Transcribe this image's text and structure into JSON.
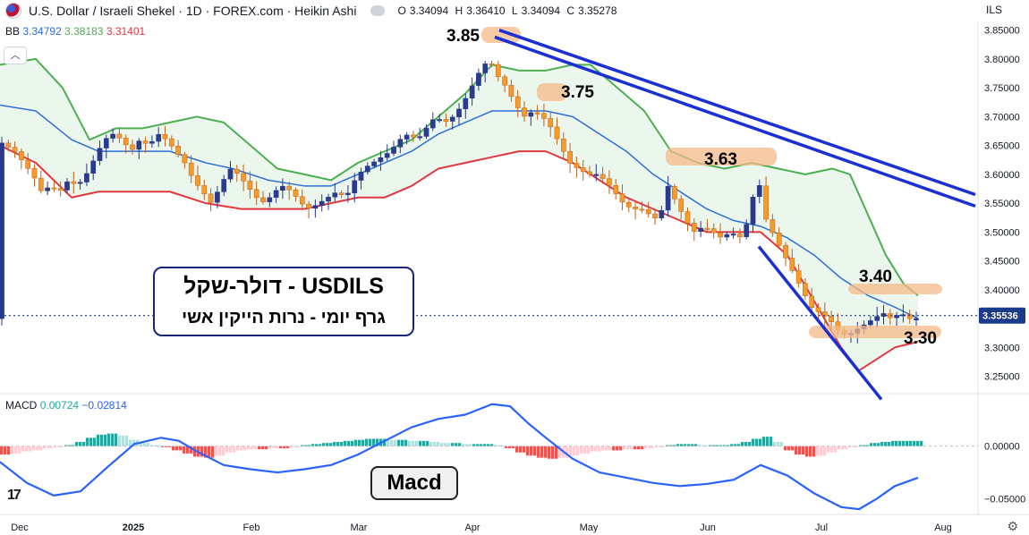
{
  "header": {
    "title": "U.S. Dollar / Israeli Shekel · 1D · FOREX.com · Heikin Ashi",
    "open_label": "O",
    "open": "3.34094",
    "high_label": "H",
    "high": "3.36410",
    "low_label": "L",
    "low": "3.34094",
    "close_label": "C",
    "close": "3.35278",
    "symbol_short": "ILS"
  },
  "indicators": {
    "bb_label": "BB",
    "bb_basis": "3.34792",
    "bb_upper": "3.38183",
    "bb_lower": "3.31401",
    "macd_label": "MACD",
    "macd_value": "0.00724",
    "signal_value": "−0.02814"
  },
  "colors": {
    "bullish": "#2a3a8c",
    "bearish": "#f59a2b",
    "bb_upper": "#4caf50",
    "bb_lower": "#e0383e",
    "bb_basis": "#2e6fd6",
    "bb_fill": "#e8f5e9",
    "trend": "#1a2fd4",
    "macd_line": "#2962ff",
    "hist_pos": "#26a69a",
    "hist_neg": "#ef5350",
    "highlight": "#f6b98a",
    "last_price": "#1a3a8c"
  },
  "icons": {
    "collapse": "chevron-up-icon",
    "settings": "gear-icon",
    "logo": "tradingview-logo-icon"
  },
  "annotations": {
    "box_title": "USDILS - דולר-שקל",
    "box_subtitle": "גרף   יומי  - נרות הייקין אשי",
    "macd_label": "Macd",
    "level_385": "3.85",
    "level_375": "3.75",
    "level_363": "3.63",
    "level_340": "3.40",
    "level_330": "3.30"
  },
  "chart_data": {
    "type": "candlestick",
    "candle_style": "Heikin Ashi",
    "timeframe": "1D",
    "y_axis": {
      "ticks": [
        "3.85000",
        "3.80000",
        "3.75000",
        "3.70000",
        "3.65000",
        "3.60000",
        "3.55000",
        "3.50000",
        "3.45000",
        "3.40000",
        "3.35000",
        "3.30000",
        "3.25000"
      ],
      "range": [
        3.22,
        3.865
      ],
      "last_price": "3.35536"
    },
    "macd_axis": {
      "ticks": [
        "0.00000",
        "−0.05000"
      ],
      "range": [
        -0.065,
        0.05
      ]
    },
    "x_axis": {
      "labels": [
        "Dec",
        "2025",
        "Feb",
        "Mar",
        "Apr",
        "May",
        "Jun",
        "Jul",
        "Aug"
      ]
    },
    "key_levels": [
      3.85,
      3.75,
      3.63,
      3.4,
      3.3
    ],
    "price_path": [
      [
        0,
        3.66
      ],
      [
        10,
        3.65
      ],
      [
        20,
        3.64
      ],
      [
        30,
        3.62
      ],
      [
        40,
        3.6
      ],
      [
        50,
        3.57
      ],
      [
        60,
        3.58
      ],
      [
        70,
        3.57
      ],
      [
        80,
        3.59
      ],
      [
        90,
        3.58
      ],
      [
        100,
        3.6
      ],
      [
        110,
        3.63
      ],
      [
        120,
        3.66
      ],
      [
        130,
        3.67
      ],
      [
        140,
        3.66
      ],
      [
        150,
        3.64
      ],
      [
        160,
        3.66
      ],
      [
        170,
        3.65
      ],
      [
        180,
        3.67
      ],
      [
        190,
        3.66
      ],
      [
        200,
        3.64
      ],
      [
        210,
        3.62
      ],
      [
        220,
        3.59
      ],
      [
        230,
        3.57
      ],
      [
        240,
        3.55
      ],
      [
        250,
        3.58
      ],
      [
        260,
        3.61
      ],
      [
        270,
        3.6
      ],
      [
        280,
        3.58
      ],
      [
        290,
        3.56
      ],
      [
        300,
        3.55
      ],
      [
        310,
        3.57
      ],
      [
        320,
        3.58
      ],
      [
        330,
        3.57
      ],
      [
        340,
        3.55
      ],
      [
        350,
        3.54
      ],
      [
        360,
        3.55
      ],
      [
        370,
        3.56
      ],
      [
        380,
        3.57
      ],
      [
        390,
        3.56
      ],
      [
        400,
        3.59
      ],
      [
        410,
        3.61
      ],
      [
        420,
        3.62
      ],
      [
        430,
        3.63
      ],
      [
        440,
        3.64
      ],
      [
        450,
        3.66
      ],
      [
        460,
        3.67
      ],
      [
        470,
        3.66
      ],
      [
        480,
        3.68
      ],
      [
        490,
        3.7
      ],
      [
        500,
        3.69
      ],
      [
        510,
        3.7
      ],
      [
        520,
        3.72
      ],
      [
        530,
        3.75
      ],
      [
        540,
        3.78
      ],
      [
        550,
        3.8
      ],
      [
        560,
        3.77
      ],
      [
        570,
        3.75
      ],
      [
        580,
        3.72
      ],
      [
        590,
        3.7
      ],
      [
        600,
        3.71
      ],
      [
        610,
        3.7
      ],
      [
        620,
        3.68
      ],
      [
        630,
        3.65
      ],
      [
        640,
        3.62
      ],
      [
        650,
        3.61
      ],
      [
        660,
        3.6
      ],
      [
        670,
        3.6
      ],
      [
        680,
        3.59
      ],
      [
        690,
        3.57
      ],
      [
        700,
        3.55
      ],
      [
        710,
        3.54
      ],
      [
        720,
        3.54
      ],
      [
        730,
        3.53
      ],
      [
        740,
        3.52
      ],
      [
        750,
        3.58
      ],
      [
        760,
        3.55
      ],
      [
        770,
        3.52
      ],
      [
        780,
        3.5
      ],
      [
        790,
        3.51
      ],
      [
        800,
        3.5
      ],
      [
        810,
        3.49
      ],
      [
        820,
        3.5
      ],
      [
        830,
        3.49
      ],
      [
        840,
        3.52
      ],
      [
        850,
        3.6
      ],
      [
        855,
        3.56
      ],
      [
        860,
        3.52
      ],
      [
        870,
        3.49
      ],
      [
        880,
        3.46
      ],
      [
        890,
        3.43
      ],
      [
        900,
        3.4
      ],
      [
        910,
        3.37
      ],
      [
        920,
        3.36
      ],
      [
        930,
        3.35
      ],
      [
        940,
        3.33
      ],
      [
        950,
        3.32
      ],
      [
        960,
        3.33
      ],
      [
        970,
        3.34
      ],
      [
        980,
        3.35
      ],
      [
        990,
        3.36
      ],
      [
        1000,
        3.35
      ],
      [
        1010,
        3.36
      ],
      [
        1020,
        3.35
      ],
      [
        1026,
        3.35
      ]
    ],
    "bollinger_bands": {
      "upper": [
        [
          0,
          3.79
        ],
        [
          40,
          3.8
        ],
        [
          70,
          3.75
        ],
        [
          100,
          3.66
        ],
        [
          130,
          3.68
        ],
        [
          160,
          3.68
        ],
        [
          190,
          3.69
        ],
        [
          220,
          3.7
        ],
        [
          250,
          3.69
        ],
        [
          280,
          3.65
        ],
        [
          310,
          3.61
        ],
        [
          340,
          3.6
        ],
        [
          370,
          3.59
        ],
        [
          400,
          3.62
        ],
        [
          430,
          3.64
        ],
        [
          460,
          3.66
        ],
        [
          490,
          3.7
        ],
        [
          520,
          3.74
        ],
        [
          550,
          3.79
        ],
        [
          580,
          3.78
        ],
        [
          610,
          3.78
        ],
        [
          640,
          3.79
        ],
        [
          660,
          3.79
        ],
        [
          690,
          3.75
        ],
        [
          720,
          3.71
        ],
        [
          750,
          3.64
        ],
        [
          780,
          3.62
        ],
        [
          810,
          3.61
        ],
        [
          840,
          3.62
        ],
        [
          870,
          3.61
        ],
        [
          900,
          3.6
        ],
        [
          930,
          3.61
        ],
        [
          950,
          3.6
        ],
        [
          970,
          3.53
        ],
        [
          990,
          3.46
        ],
        [
          1010,
          3.41
        ],
        [
          1026,
          3.39
        ]
      ],
      "basis": [
        [
          0,
          3.72
        ],
        [
          40,
          3.71
        ],
        [
          80,
          3.66
        ],
        [
          110,
          3.64
        ],
        [
          150,
          3.64
        ],
        [
          190,
          3.64
        ],
        [
          230,
          3.62
        ],
        [
          260,
          3.61
        ],
        [
          300,
          3.59
        ],
        [
          340,
          3.58
        ],
        [
          370,
          3.58
        ],
        [
          400,
          3.6
        ],
        [
          430,
          3.62
        ],
        [
          460,
          3.64
        ],
        [
          490,
          3.67
        ],
        [
          520,
          3.69
        ],
        [
          550,
          3.71
        ],
        [
          580,
          3.71
        ],
        [
          610,
          3.71
        ],
        [
          640,
          3.7
        ],
        [
          670,
          3.67
        ],
        [
          700,
          3.64
        ],
        [
          730,
          3.6
        ],
        [
          760,
          3.57
        ],
        [
          790,
          3.54
        ],
        [
          820,
          3.52
        ],
        [
          850,
          3.51
        ],
        [
          880,
          3.49
        ],
        [
          910,
          3.46
        ],
        [
          940,
          3.42
        ],
        [
          970,
          3.39
        ],
        [
          1000,
          3.37
        ],
        [
          1026,
          3.35
        ]
      ],
      "lower": [
        [
          0,
          3.65
        ],
        [
          40,
          3.62
        ],
        [
          80,
          3.56
        ],
        [
          110,
          3.57
        ],
        [
          150,
          3.57
        ],
        [
          190,
          3.57
        ],
        [
          230,
          3.55
        ],
        [
          270,
          3.54
        ],
        [
          300,
          3.54
        ],
        [
          340,
          3.54
        ],
        [
          370,
          3.55
        ],
        [
          400,
          3.56
        ],
        [
          430,
          3.56
        ],
        [
          460,
          3.58
        ],
        [
          490,
          3.61
        ],
        [
          520,
          3.62
        ],
        [
          550,
          3.63
        ],
        [
          580,
          3.64
        ],
        [
          610,
          3.64
        ],
        [
          640,
          3.62
        ],
        [
          670,
          3.59
        ],
        [
          700,
          3.56
        ],
        [
          730,
          3.54
        ],
        [
          760,
          3.52
        ],
        [
          790,
          3.5
        ],
        [
          820,
          3.5
        ],
        [
          850,
          3.5
        ],
        [
          880,
          3.46
        ],
        [
          910,
          3.38
        ],
        [
          940,
          3.3
        ],
        [
          960,
          3.26
        ],
        [
          980,
          3.28
        ],
        [
          1000,
          3.3
        ],
        [
          1026,
          3.31
        ]
      ]
    },
    "trend_lines": [
      {
        "x1": 558,
        "y1": 3.85,
        "x2": 1090,
        "y2": 3.565
      },
      {
        "x1": 553,
        "y1": 3.838,
        "x2": 1090,
        "y2": 3.545
      },
      {
        "x1": 848,
        "y1": 3.475,
        "x2": 985,
        "y2": 3.21
      }
    ],
    "macd": {
      "line": [
        [
          0,
          -0.015
        ],
        [
          30,
          -0.035
        ],
        [
          60,
          -0.047
        ],
        [
          90,
          -0.043
        ],
        [
          120,
          -0.02
        ],
        [
          150,
          0.002
        ],
        [
          180,
          0.008
        ],
        [
          200,
          0.005
        ],
        [
          220,
          -0.005
        ],
        [
          250,
          -0.018
        ],
        [
          280,
          -0.022
        ],
        [
          310,
          -0.025
        ],
        [
          340,
          -0.022
        ],
        [
          370,
          -0.018
        ],
        [
          400,
          -0.008
        ],
        [
          430,
          0.005
        ],
        [
          460,
          0.018
        ],
        [
          490,
          0.026
        ],
        [
          520,
          0.03
        ],
        [
          550,
          0.04
        ],
        [
          570,
          0.038
        ],
        [
          590,
          0.022
        ],
        [
          610,
          0.008
        ],
        [
          640,
          -0.012
        ],
        [
          670,
          -0.025
        ],
        [
          700,
          -0.03
        ],
        [
          730,
          -0.035
        ],
        [
          760,
          -0.038
        ],
        [
          790,
          -0.036
        ],
        [
          820,
          -0.032
        ],
        [
          850,
          -0.018
        ],
        [
          880,
          -0.028
        ],
        [
          910,
          -0.045
        ],
        [
          940,
          -0.058
        ],
        [
          960,
          -0.06
        ],
        [
          980,
          -0.05
        ],
        [
          1000,
          -0.038
        ],
        [
          1026,
          -0.03
        ]
      ],
      "histogram": [
        [
          0,
          -0.008
        ],
        [
          12,
          -0.007
        ],
        [
          24,
          -0.005
        ],
        [
          36,
          -0.004
        ],
        [
          48,
          -0.002
        ],
        [
          60,
          -0.001
        ],
        [
          72,
          0.001
        ],
        [
          84,
          0.004
        ],
        [
          96,
          0.008
        ],
        [
          108,
          0.011
        ],
        [
          120,
          0.012
        ],
        [
          132,
          0.01
        ],
        [
          144,
          0.006
        ],
        [
          156,
          0.003
        ],
        [
          168,
          0.001
        ],
        [
          180,
          -0.001
        ],
        [
          192,
          -0.004
        ],
        [
          204,
          -0.007
        ],
        [
          216,
          -0.01
        ],
        [
          228,
          -0.011
        ],
        [
          240,
          -0.009
        ],
        [
          252,
          -0.006
        ],
        [
          264,
          -0.004
        ],
        [
          276,
          -0.003
        ],
        [
          288,
          -0.003
        ],
        [
          300,
          -0.002
        ],
        [
          312,
          -0.002
        ],
        [
          324,
          -0.001
        ],
        [
          336,
          0.001
        ],
        [
          348,
          0.002
        ],
        [
          360,
          0.003
        ],
        [
          372,
          0.004
        ],
        [
          384,
          0.005
        ],
        [
          396,
          0.006
        ],
        [
          408,
          0.007
        ],
        [
          420,
          0.007
        ],
        [
          432,
          0.006
        ],
        [
          444,
          0.006
        ],
        [
          456,
          0.005
        ],
        [
          468,
          0.005
        ],
        [
          480,
          0.004
        ],
        [
          492,
          0.003
        ],
        [
          504,
          0.003
        ],
        [
          516,
          0.002
        ],
        [
          528,
          0.002
        ],
        [
          540,
          0.002
        ],
        [
          552,
          0.001
        ],
        [
          564,
          -0.002
        ],
        [
          576,
          -0.006
        ],
        [
          588,
          -0.009
        ],
        [
          600,
          -0.011
        ],
        [
          612,
          -0.012
        ],
        [
          624,
          -0.011
        ],
        [
          636,
          -0.009
        ],
        [
          648,
          -0.007
        ],
        [
          660,
          -0.005
        ],
        [
          672,
          -0.004
        ],
        [
          684,
          -0.004
        ],
        [
          696,
          -0.003
        ],
        [
          708,
          -0.003
        ],
        [
          720,
          -0.002
        ],
        [
          732,
          -0.001
        ],
        [
          744,
          0.001
        ],
        [
          756,
          0.002
        ],
        [
          768,
          0.002
        ],
        [
          780,
          0.001
        ],
        [
          792,
          0.001
        ],
        [
          804,
          0.001
        ],
        [
          816,
          0.002
        ],
        [
          828,
          0.004
        ],
        [
          840,
          0.007
        ],
        [
          852,
          0.009
        ],
        [
          864,
          0.004
        ],
        [
          876,
          -0.004
        ],
        [
          888,
          -0.008
        ],
        [
          900,
          -0.01
        ],
        [
          912,
          -0.009
        ],
        [
          924,
          -0.006
        ],
        [
          936,
          -0.003
        ],
        [
          948,
          -0.001
        ],
        [
          960,
          0.001
        ],
        [
          972,
          0.003
        ],
        [
          984,
          0.004
        ],
        [
          996,
          0.005
        ],
        [
          1008,
          0.005
        ],
        [
          1020,
          0.005
        ]
      ]
    }
  }
}
